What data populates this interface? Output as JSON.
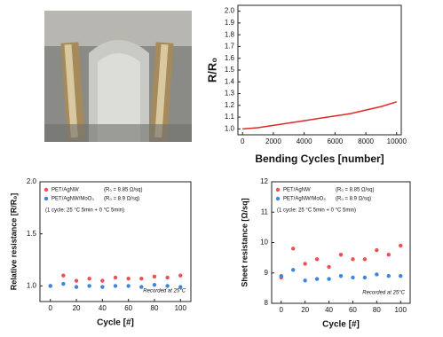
{
  "chart_data": [
    {
      "type": "line",
      "x_label": "Bending Cycles [number]",
      "y_label": "R/R₀",
      "x": [
        0,
        1000,
        2000,
        3000,
        4000,
        5000,
        6000,
        7000,
        8000,
        9000,
        10000
      ],
      "values": [
        1.0,
        1.01,
        1.03,
        1.05,
        1.07,
        1.09,
        1.11,
        1.13,
        1.16,
        1.19,
        1.23
      ],
      "color": "#e02828",
      "xlim": [
        -300,
        10300
      ],
      "xticks": [
        0,
        2000,
        4000,
        6000,
        8000,
        10000
      ],
      "ylim": [
        0.95,
        2.05
      ],
      "yticks": [
        {
          "value": 1,
          "label": "1.0"
        },
        1.1,
        1.2,
        1.3,
        1.4,
        1.5,
        1.6,
        1.7,
        1.8,
        1.9,
        {
          "value": 2,
          "label": "2.0"
        }
      ]
    },
    {
      "type": "scatter",
      "x_label": "Cycle [#]",
      "y_label": "Relative resistance [R/R₀]",
      "x": [
        0,
        10,
        20,
        30,
        40,
        50,
        60,
        70,
        80,
        90,
        100
      ],
      "series": [
        {
          "name": "PET/AgNW",
          "note": "(R₀ = 8.85 Ω/sq)",
          "color": "#f05050",
          "values": [
            1.0,
            1.1,
            1.05,
            1.07,
            1.05,
            1.08,
            1.07,
            1.07,
            1.09,
            1.08,
            1.1
          ]
        },
        {
          "name": "PET/AgNW/MoO₃",
          "note": "(R₀ = 8.9 Ω/sq)",
          "color": "#3a86e0",
          "values": [
            1.0,
            1.02,
            0.99,
            1.0,
            0.99,
            1.0,
            1.0,
            0.99,
            1.01,
            1.0,
            0.99
          ]
        }
      ],
      "annotation": "(1 cycle: 25 °C 5min + 0 °C 5min)",
      "footnote": "Recorded at 25°C",
      "xlim": [
        -8,
        108
      ],
      "xticks": [
        0,
        20,
        40,
        60,
        80,
        100
      ],
      "ylim": [
        0.85,
        2.0
      ],
      "yticks": [
        {
          "value": 1,
          "label": "1.0"
        },
        1.5,
        {
          "value": 2,
          "label": "2.0"
        }
      ]
    },
    {
      "type": "scatter",
      "x_label": "Cycle [#]",
      "y_label": "Sheet resistance [Ω/sq]",
      "x": [
        0,
        10,
        20,
        30,
        40,
        50,
        60,
        70,
        80,
        90,
        100
      ],
      "series": [
        {
          "name": "PET/AgNW",
          "note": "(R₀ = 8.85 Ω/sq)",
          "color": "#f05050",
          "values": [
            8.85,
            9.8,
            9.3,
            9.45,
            9.2,
            9.6,
            9.45,
            9.45,
            9.75,
            9.6,
            9.9
          ]
        },
        {
          "name": "PET/AgNW/MoO₃",
          "note": "(R₀ = 8.9 Ω/sq)",
          "color": "#3a86e0",
          "values": [
            8.9,
            9.1,
            8.75,
            8.8,
            8.8,
            8.9,
            8.85,
            8.85,
            8.95,
            8.9,
            8.9
          ]
        }
      ],
      "annotation": "(1 cycle: 25 °C 5min + 0 °C 5min)",
      "footnote": "Recorded at 25°C",
      "xlim": [
        -8,
        108
      ],
      "xticks": [
        0,
        20,
        40,
        60,
        80,
        100
      ],
      "ylim": [
        8,
        12
      ],
      "yticks": [
        8,
        9,
        10,
        11,
        12
      ]
    }
  ]
}
